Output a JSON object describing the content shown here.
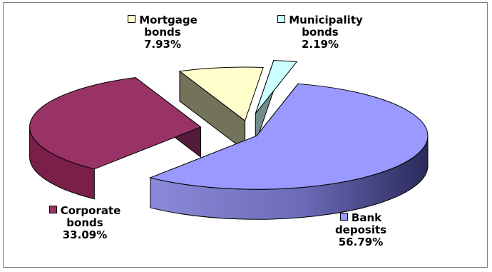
{
  "chart_data": {
    "type": "pie",
    "style": "3d-exploded",
    "title": "",
    "slices": [
      {
        "key": "bank",
        "label_lines": [
          "Bank",
          "deposits"
        ],
        "value_text": "56.79%",
        "value": 56.79,
        "color": "#9999FF"
      },
      {
        "key": "corporate",
        "label_lines": [
          "Corporate",
          "bonds"
        ],
        "value_text": "33.09%",
        "value": 33.09,
        "color": "#993366"
      },
      {
        "key": "mortgage",
        "label_lines": [
          "Mortgage",
          "bonds"
        ],
        "value_text": "7.93%",
        "value": 7.93,
        "color": "#FFFFCC"
      },
      {
        "key": "municipality",
        "label_lines": [
          "Municipality",
          "bonds"
        ],
        "value_text": "2.19%",
        "value": 2.19,
        "color": "#CCFFFF"
      }
    ]
  }
}
